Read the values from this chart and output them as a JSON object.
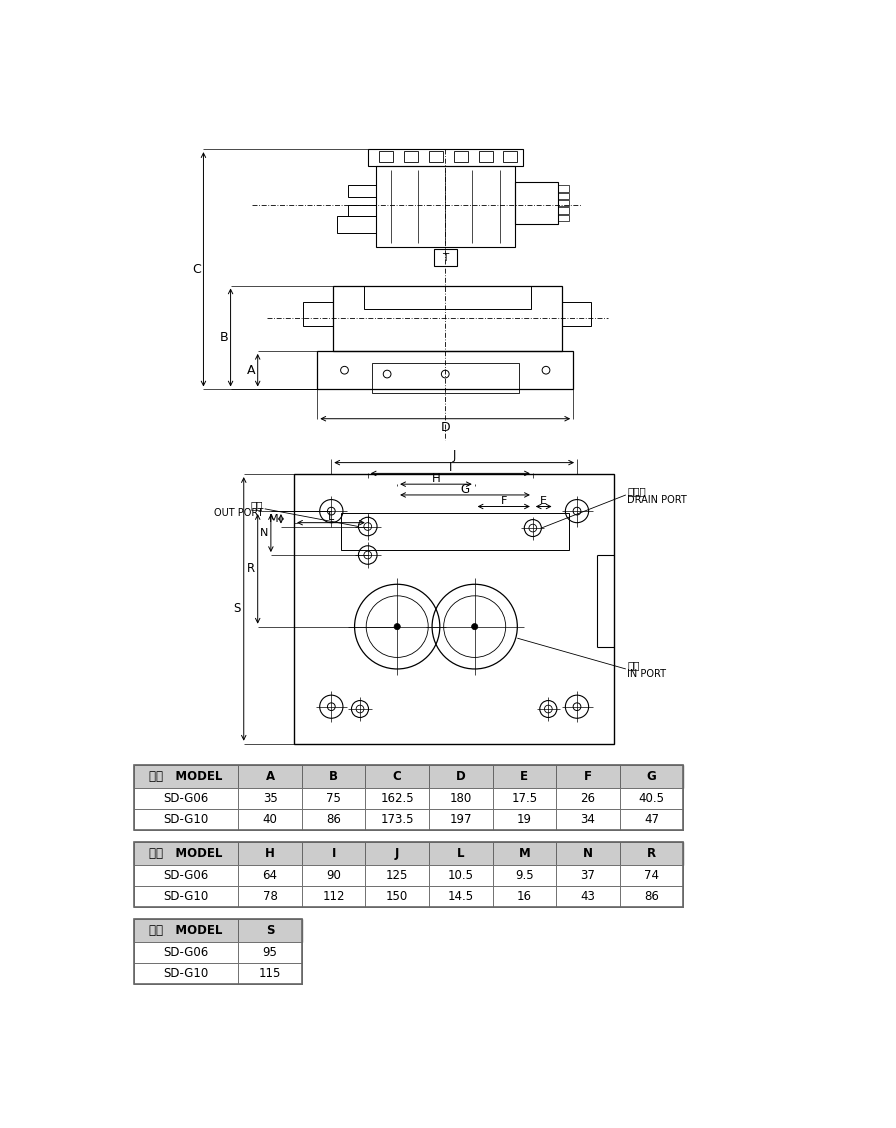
{
  "background_color": "#ffffff",
  "line_color": "#000000",
  "table1_headers": [
    "型式   MODEL",
    "A",
    "B",
    "C",
    "D",
    "E",
    "F",
    "G"
  ],
  "table1_rows": [
    [
      "SD-G06",
      "35",
      "75",
      "162.5",
      "180",
      "17.5",
      "26",
      "40.5"
    ],
    [
      "SD-G10",
      "40",
      "86",
      "173.5",
      "197",
      "19",
      "34",
      "47"
    ]
  ],
  "table2_headers": [
    "型式   MODEL",
    "H",
    "I",
    "J",
    "L",
    "M",
    "N",
    "R"
  ],
  "table2_rows": [
    [
      "SD-G06",
      "64",
      "90",
      "125",
      "10.5",
      "9.5",
      "37",
      "74"
    ],
    [
      "SD-G10",
      "78",
      "112",
      "150",
      "14.5",
      "16",
      "43",
      "86"
    ]
  ],
  "table3_headers": [
    "型式   MODEL",
    "S"
  ],
  "table3_rows": [
    [
      "SD-G06",
      "95"
    ],
    [
      "SD-G10",
      "115"
    ]
  ],
  "header_bg": "#cccccc",
  "table_border": "#666666"
}
